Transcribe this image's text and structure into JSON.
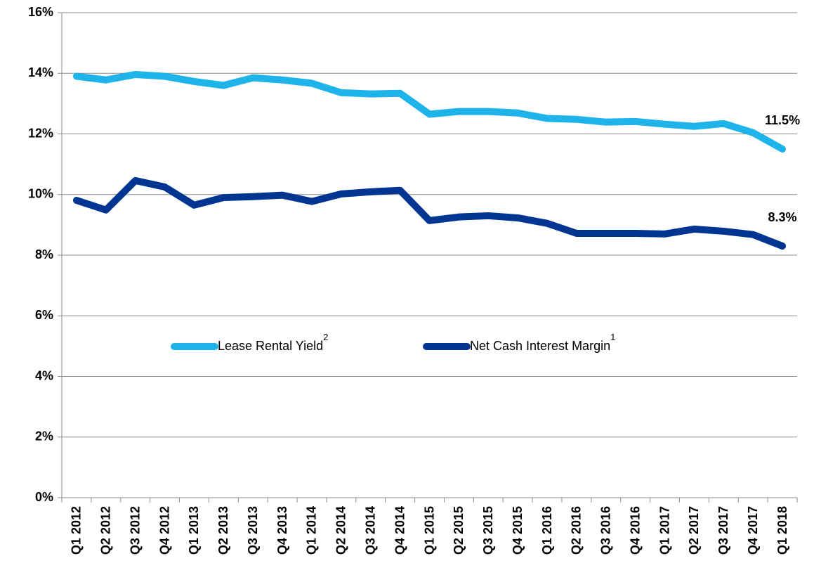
{
  "chart_data": {
    "type": "line",
    "categories": [
      "Q1 2012",
      "Q2 2012",
      "Q3 2012",
      "Q4 2012",
      "Q1 2013",
      "Q2 2013",
      "Q3 2013",
      "Q4 2013",
      "Q1 2014",
      "Q2 2014",
      "Q3 2014",
      "Q4 2014",
      "Q1 2015",
      "Q2 2015",
      "Q3 2015",
      "Q4 2015",
      "Q1 2016",
      "Q2 2016",
      "Q3 2016",
      "Q4 2016",
      "Q1 2017",
      "Q2 2017",
      "Q3 2017",
      "Q4 2017",
      "Q1 2018"
    ],
    "series": [
      {
        "name": "Lease Rental Yield",
        "footnote": "2",
        "color": "#1eb4ea",
        "values": [
          13.9,
          13.78,
          13.96,
          13.9,
          13.73,
          13.6,
          13.85,
          13.78,
          13.67,
          13.36,
          13.32,
          13.34,
          12.65,
          12.74,
          12.74,
          12.69,
          12.51,
          12.48,
          12.39,
          12.41,
          12.32,
          12.25,
          12.34,
          12.04,
          11.5
        ],
        "value_labels": [
          null,
          null,
          null,
          null,
          null,
          null,
          null,
          null,
          null,
          null,
          null,
          null,
          null,
          null,
          null,
          null,
          null,
          null,
          null,
          null,
          null,
          null,
          null,
          null,
          "11.5%"
        ]
      },
      {
        "name": "Net Cash Interest Margin",
        "footnote": "1",
        "color": "#003592",
        "values": [
          9.81,
          9.49,
          10.46,
          10.25,
          9.65,
          9.9,
          9.93,
          9.98,
          9.77,
          10.02,
          10.09,
          10.14,
          9.14,
          9.26,
          9.3,
          9.23,
          9.05,
          8.72,
          8.72,
          8.72,
          8.7,
          8.86,
          8.79,
          8.68,
          8.3
        ],
        "value_labels": [
          null,
          null,
          null,
          null,
          null,
          null,
          null,
          null,
          null,
          null,
          null,
          null,
          null,
          null,
          null,
          null,
          null,
          null,
          null,
          null,
          null,
          null,
          null,
          null,
          "8.3%"
        ]
      }
    ],
    "ylim": [
      0,
      16
    ],
    "yticks": [
      {
        "value": 0,
        "label": "0%"
      },
      {
        "value": 2,
        "label": "2%"
      },
      {
        "value": 4,
        "label": "4%"
      },
      {
        "value": 6,
        "label": "6%"
      },
      {
        "value": 8,
        "label": "8%"
      },
      {
        "value": 10,
        "label": "10%"
      },
      {
        "value": 12,
        "label": "12%"
      },
      {
        "value": 14,
        "label": "14%"
      },
      {
        "value": 16,
        "label": "16%"
      }
    ],
    "grid": true,
    "legend": "center"
  }
}
